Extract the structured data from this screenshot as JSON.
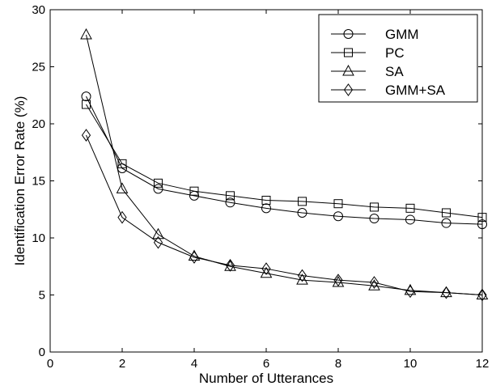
{
  "chart_data": {
    "type": "line",
    "title": "",
    "xlabel": "Number of Utterances",
    "ylabel": "Identification Error Rate (%)",
    "xlim": [
      0,
      12
    ],
    "ylim": [
      0,
      30
    ],
    "xticks": [
      0,
      2,
      4,
      6,
      8,
      10,
      12
    ],
    "yticks": [
      0,
      5,
      10,
      15,
      20,
      25,
      30
    ],
    "grid": false,
    "legend_position": "top-right",
    "x": [
      1,
      2,
      3,
      4,
      5,
      6,
      7,
      8,
      9,
      10,
      11,
      12
    ],
    "series": [
      {
        "name": "GMM",
        "marker": "circle",
        "values": [
          22.4,
          16.1,
          14.3,
          13.7,
          13.1,
          12.6,
          12.2,
          11.9,
          11.7,
          11.6,
          11.3,
          11.2
        ]
      },
      {
        "name": "PC",
        "marker": "square",
        "values": [
          21.7,
          16.5,
          14.8,
          14.1,
          13.7,
          13.3,
          13.2,
          13.0,
          12.7,
          12.6,
          12.2,
          11.8
        ]
      },
      {
        "name": "SA",
        "marker": "triangle",
        "values": [
          27.8,
          14.3,
          10.3,
          8.4,
          7.5,
          6.9,
          6.3,
          6.1,
          5.8,
          5.4,
          5.2,
          5.0
        ]
      },
      {
        "name": "GMM+SA",
        "marker": "diamond",
        "values": [
          19.0,
          11.8,
          9.6,
          8.3,
          7.6,
          7.3,
          6.7,
          6.3,
          6.1,
          5.3,
          5.2,
          5.0
        ]
      }
    ]
  }
}
